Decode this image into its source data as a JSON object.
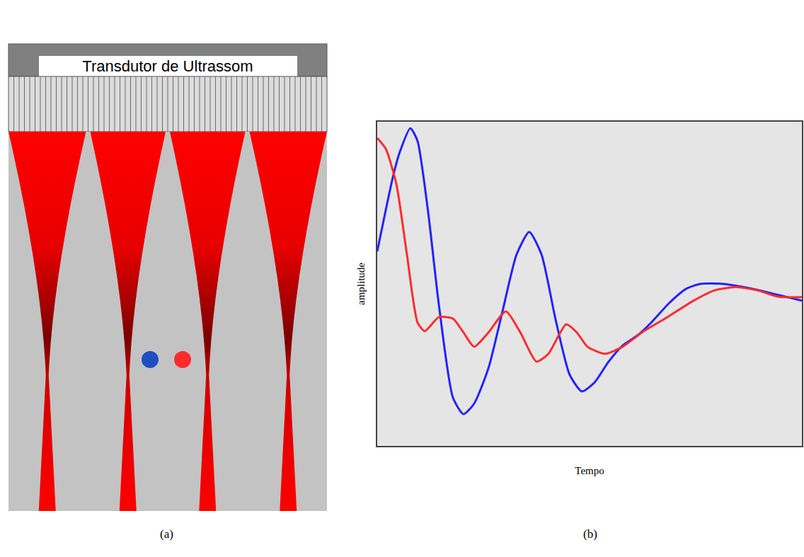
{
  "diagram": {
    "panel": "(a)",
    "title": "Transdutor de Ultrassom",
    "points": [
      {
        "color": "#1f4fbf"
      },
      {
        "color": "#ff2a2a"
      }
    ]
  },
  "chart_data": {
    "panel": "(b)",
    "type": "line",
    "x_label": "Tempo",
    "y_label": "amplitude",
    "xlim": [
      0,
      100
    ],
    "ylim": [
      0,
      100
    ],
    "tick_labels": false,
    "grid": false,
    "series": [
      {
        "color": "#2222ff",
        "x": [
          0,
          3.7,
          5.3,
          7.8,
          9.5,
          12,
          14.5,
          17.8,
          20.3,
          22.8,
          26.2,
          29.5,
          32.8,
          35.8,
          38.7,
          42,
          45.3,
          48.2,
          51.2,
          54.5,
          57.8,
          61.2,
          64.5,
          68.7,
          72.8,
          76.2,
          81.2,
          86.2,
          91.2,
          96.2,
          100
        ],
        "values": [
          60,
          83,
          90.6,
          98,
          94,
          72,
          43.7,
          15,
          9.8,
          13,
          24,
          41.5,
          59,
          66,
          59,
          39,
          22,
          16.8,
          19.6,
          26,
          31,
          34,
          38,
          44,
          48.5,
          50,
          50,
          49,
          47.6,
          46,
          44.8
        ]
      },
      {
        "color": "#ff2a2a",
        "x": [
          0,
          2,
          4.5,
          7,
          9.5,
          11.2,
          14.5,
          17.8,
          20.3,
          22.8,
          26.2,
          30.3,
          33.7,
          37.5,
          40.3,
          44.5,
          47,
          49.5,
          53.7,
          57.8,
          62.8,
          67.8,
          74.5,
          79.5,
          84.5,
          89.5,
          94.5,
          100
        ],
        "values": [
          95,
          91.7,
          80.8,
          59,
          38,
          35.4,
          39.7,
          39.3,
          35,
          30.6,
          35,
          41.5,
          35,
          26,
          28.4,
          37.5,
          35,
          30.6,
          28.4,
          30.6,
          35.4,
          39.3,
          44.8,
          48,
          49,
          48,
          46,
          45.9
        ]
      }
    ]
  }
}
